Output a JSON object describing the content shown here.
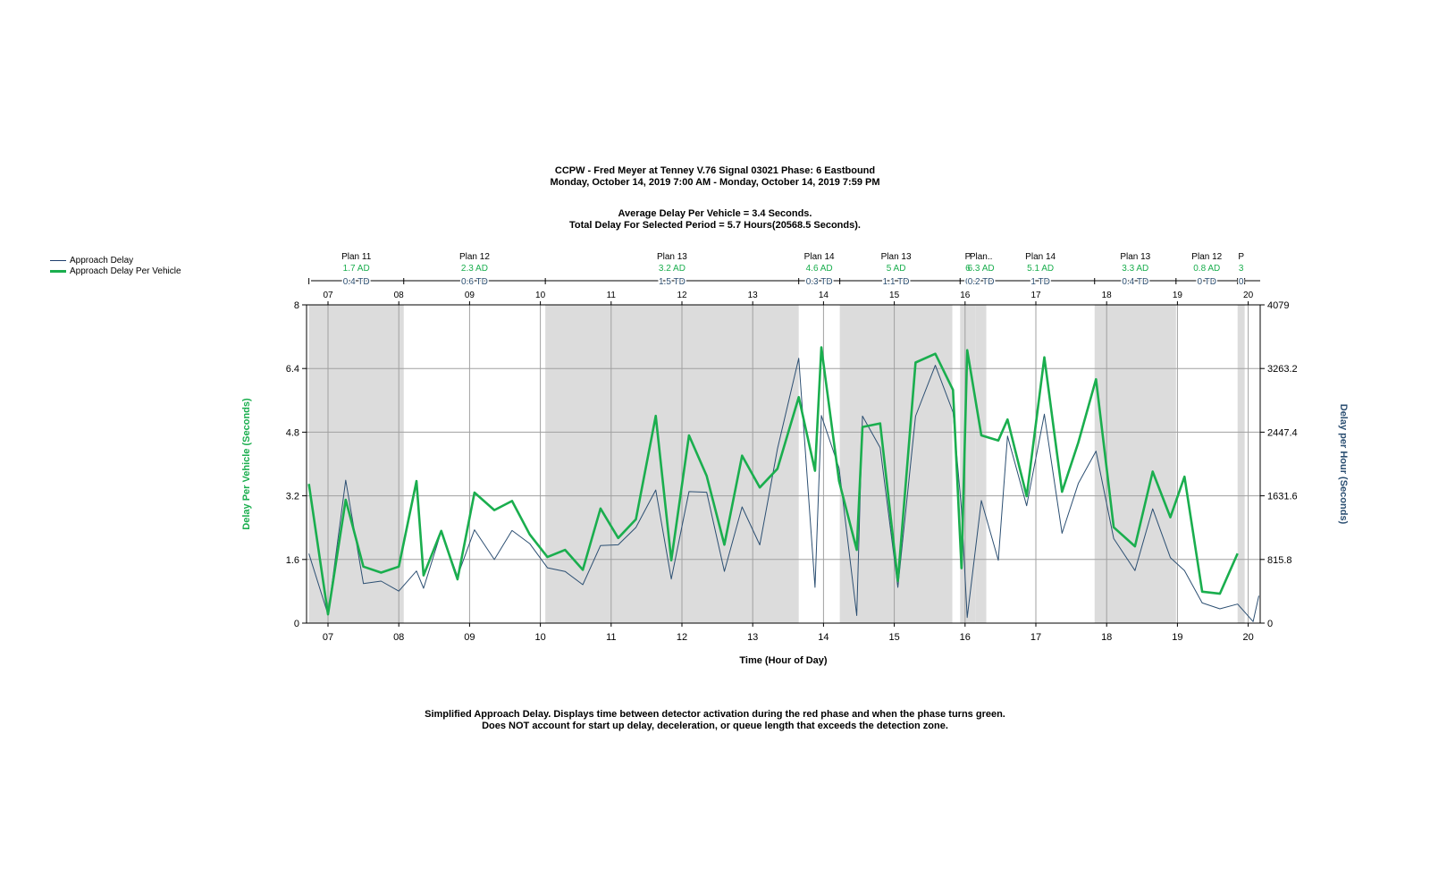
{
  "title": {
    "line1": "CCPW - Fred Meyer at Tenney V.76  Signal 03021 Phase: 6 Eastbound",
    "line2": "Monday, October 14, 2019 7:00 AM - Monday, October 14, 2019 7:59 PM"
  },
  "summary": {
    "line1": "Average Delay Per Vehicle = 3.4 Seconds.",
    "line2": "Total Delay For Selected Period = 5.7 Hours(20568.5 Seconds)."
  },
  "footnote": {
    "line1": "Simplified Approach Delay. Displays time between detector activation during the red phase and when the phase turns green.",
    "line2": "Does NOT account for start up delay, deceleration, or queue length that exceeds the detection zone."
  },
  "legend": [
    {
      "label": "Approach Delay",
      "color": "#1f3f6e"
    },
    {
      "label": "Approach Delay Per Vehicle",
      "color": "#1aae4e"
    }
  ],
  "chart_data": {
    "type": "line",
    "xlabel": "Time (Hour of Day)",
    "ylabel_left": "Delay Per Vehicle (Seconds)",
    "ylabel_right": "Delay per Hour (Seconds)",
    "x_range": [
      6.7,
      20.15
    ],
    "ylim_left": [
      0,
      8
    ],
    "ylim_right": [
      0,
      4079
    ],
    "yticks_left": [
      "0",
      "1.6",
      "3.2",
      "4.8",
      "6.4",
      "8"
    ],
    "yticks_right": [
      "0",
      "815.8",
      "1631.6",
      "2447.4",
      "3263.2",
      "4079"
    ],
    "xticks": [
      "07",
      "08",
      "09",
      "10",
      "11",
      "12",
      "13",
      "14",
      "15",
      "16",
      "17",
      "18",
      "19",
      "20"
    ],
    "grid": true,
    "colors": {
      "approach_delay": "#2c4f72",
      "per_vehicle": "#1aae4e",
      "plan_shade": "#dcdcdc",
      "plan_ad": "#1aae4e",
      "plan_td": "#2c4f72"
    },
    "plans": [
      {
        "label": "Plan 11",
        "ad": "1.7 AD",
        "td": "0.4 TD",
        "start": 6.73,
        "end": 8.07,
        "shaded": true
      },
      {
        "label": "Plan 12",
        "ad": "2.3 AD",
        "td": "0.6 TD",
        "start": 8.07,
        "end": 10.07,
        "shaded": false
      },
      {
        "label": "Plan 13",
        "ad": "3.2 AD",
        "td": "1.5 TD",
        "start": 10.07,
        "end": 13.65,
        "shaded": true
      },
      {
        "label": "Plan 14",
        "ad": "4.6 AD",
        "td": "0.3 TD",
        "start": 13.65,
        "end": 14.23,
        "shaded": false
      },
      {
        "label": "Plan 13",
        "ad": "5 AD",
        "td": "1.1 TD",
        "start": 14.23,
        "end": 15.82,
        "shaded": true
      },
      {
        "label": "P",
        "ad": "6",
        "td": "0",
        "start": 15.93,
        "end": 16.15,
        "shaded": true
      },
      {
        "label": "Plan..",
        "ad": "6.3 AD",
        "td": "0.2 TD",
        "start": 16.15,
        "end": 16.3,
        "shaded": true
      },
      {
        "label": "Plan 14",
        "ad": "5.1 AD",
        "td": "1 TD",
        "start": 16.3,
        "end": 17.83,
        "shaded": false
      },
      {
        "label": "Plan 13",
        "ad": "3.3 AD",
        "td": "0.4 TD",
        "start": 17.83,
        "end": 18.98,
        "shaded": true
      },
      {
        "label": "Plan 12",
        "ad": "0.8 AD",
        "td": "0 TD",
        "start": 18.98,
        "end": 19.85,
        "shaded": false
      },
      {
        "label": "P",
        "ad": "3",
        "td": "0",
        "start": 19.85,
        "end": 19.95,
        "shaded": true
      }
    ],
    "series": [
      {
        "name": "Approach Delay",
        "axis": "right",
        "x": [
          6.73,
          7.0,
          7.25,
          7.5,
          7.75,
          8.0,
          8.25,
          8.35,
          8.6,
          8.83,
          9.07,
          9.35,
          9.6,
          9.85,
          10.1,
          10.35,
          10.6,
          10.85,
          11.1,
          11.35,
          11.63,
          11.85,
          12.1,
          12.35,
          12.6,
          12.85,
          13.1,
          13.35,
          13.65,
          13.88,
          13.97,
          14.22,
          14.47,
          14.55,
          14.8,
          15.05,
          15.3,
          15.58,
          15.83,
          15.95,
          16.03,
          16.23,
          16.47,
          16.6,
          16.87,
          17.12,
          17.37,
          17.6,
          17.85,
          18.1,
          18.4,
          18.65,
          18.9,
          19.1,
          19.35,
          19.6,
          19.85,
          20.07,
          20.15
        ],
        "y": [
          890,
          110,
          1832,
          508,
          539,
          410,
          668,
          447,
          1174,
          600,
          1196,
          815,
          1187,
          1019,
          709,
          662,
          493,
          994,
          1004,
          1226,
          1706,
          565,
          1686,
          1678,
          663,
          1489,
          1003,
          2234,
          3395,
          458,
          2660,
          1988,
          97,
          2654,
          2248,
          458,
          2652,
          3304,
          2704,
          1458,
          72,
          1571,
          806,
          2398,
          1504,
          2678,
          1151,
          1790,
          2205,
          1084,
          674,
          1466,
          840,
          673,
          259,
          183,
          244,
          19,
          351
        ]
      },
      {
        "name": "Approach Delay Per Vehicle",
        "axis": "left",
        "x": [
          6.73,
          7.0,
          7.25,
          7.5,
          7.75,
          8.0,
          8.25,
          8.35,
          8.6,
          8.83,
          9.07,
          9.35,
          9.6,
          9.85,
          10.1,
          10.35,
          10.6,
          10.85,
          11.1,
          11.35,
          11.63,
          11.85,
          12.1,
          12.35,
          12.6,
          12.85,
          13.1,
          13.35,
          13.65,
          13.88,
          13.97,
          14.22,
          14.47,
          14.55,
          14.8,
          15.05,
          15.3,
          15.58,
          15.83,
          15.95,
          16.03,
          16.23,
          16.47,
          16.6,
          16.87,
          17.12,
          17.37,
          17.6,
          17.85,
          18.1,
          18.4,
          18.65,
          18.9,
          19.1,
          19.35,
          19.6,
          19.85
        ],
        "y": [
          3.5,
          0.22,
          3.1,
          1.42,
          1.27,
          1.42,
          3.57,
          1.2,
          2.32,
          1.1,
          3.28,
          2.84,
          3.07,
          2.23,
          1.66,
          1.84,
          1.34,
          2.88,
          2.14,
          2.61,
          5.21,
          1.58,
          4.72,
          3.7,
          1.97,
          4.21,
          3.41,
          3.88,
          5.68,
          3.83,
          6.93,
          3.57,
          1.84,
          4.93,
          5.02,
          1.06,
          6.55,
          6.77,
          5.86,
          1.38,
          6.86,
          4.72,
          4.59,
          5.12,
          3.19,
          6.68,
          3.3,
          4.54,
          6.13,
          2.41,
          1.93,
          3.81,
          2.66,
          3.68,
          0.79,
          0.74,
          1.75
        ]
      }
    ]
  }
}
